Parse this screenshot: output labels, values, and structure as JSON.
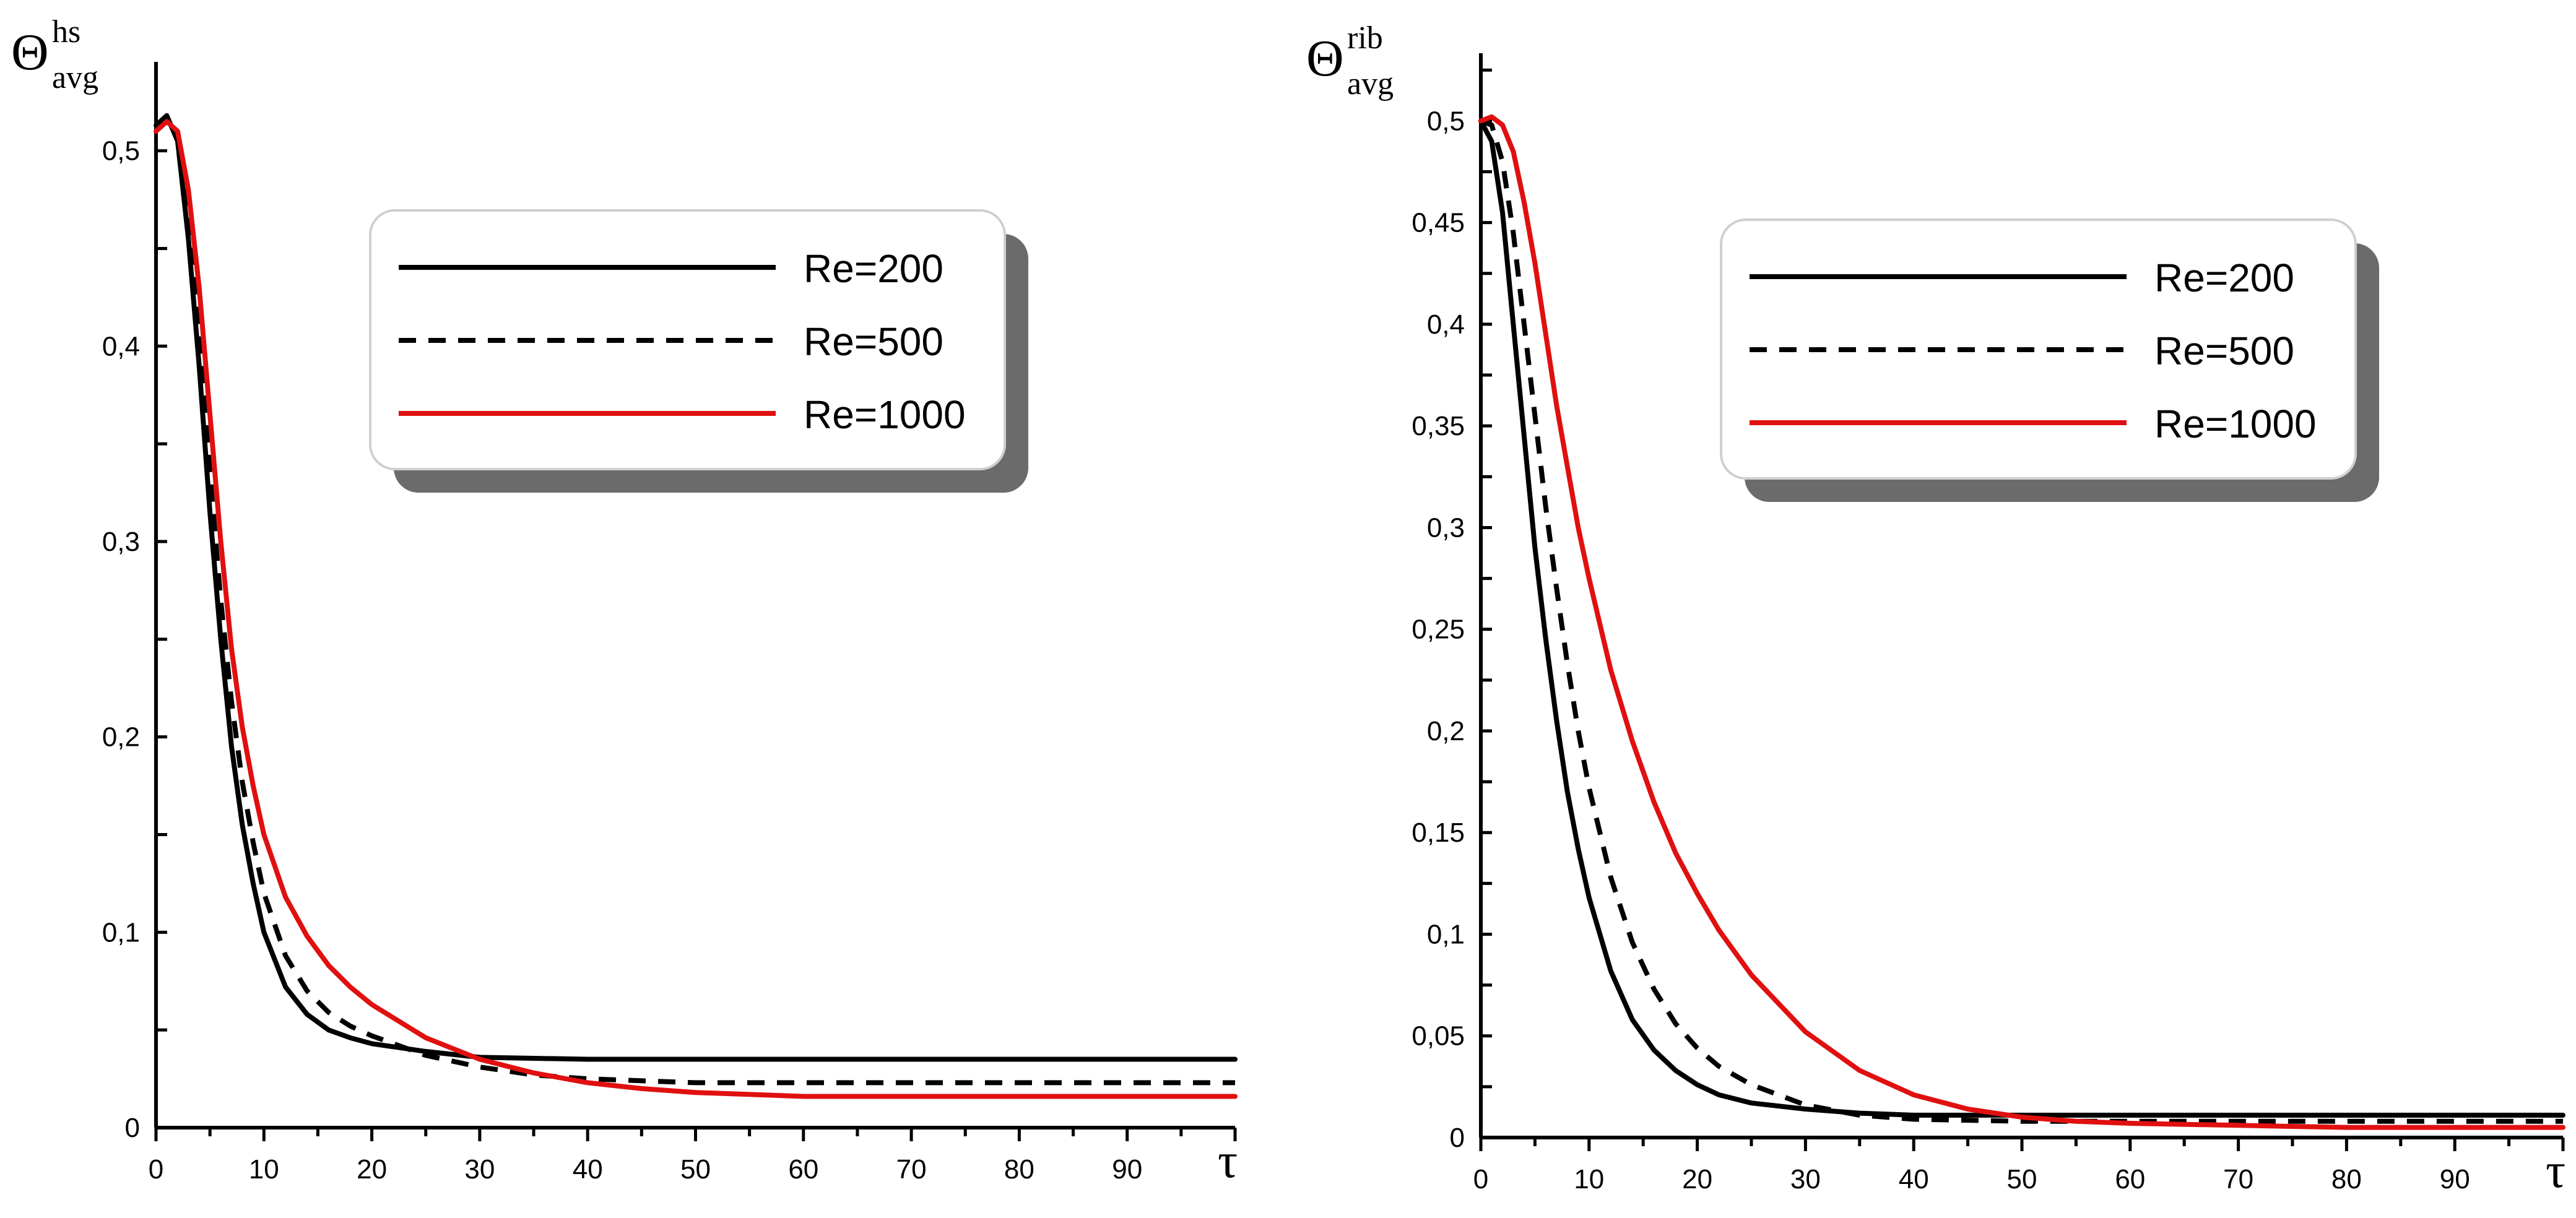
{
  "chart_data": [
    {
      "type": "line",
      "ylabel": "Θ",
      "ylabel_sup": "hs",
      "ylabel_sub": "avg",
      "xlabel": "τ",
      "xlim": [
        0,
        100
      ],
      "ylim": [
        0,
        0.5455
      ],
      "x_ticks": [
        0,
        10,
        20,
        30,
        40,
        50,
        60,
        70,
        80,
        90
      ],
      "x_tick_labels": [
        "0",
        "10",
        "20",
        "30",
        "40",
        "50",
        "60",
        "70",
        "80",
        "90"
      ],
      "y_ticks": [
        0,
        0.1,
        0.2,
        0.3,
        0.4,
        0.5
      ],
      "y_tick_labels": [
        "0",
        "0,1",
        "0,2",
        "0,3",
        "0,4",
        "0,5"
      ],
      "legend_position": "top-center",
      "series": [
        {
          "name": "Re=200",
          "color": "#000000",
          "dash": "solid",
          "x": [
            0,
            1,
            2,
            3,
            4,
            5,
            6,
            7,
            8,
            9,
            10,
            12,
            14,
            16,
            18,
            20,
            25,
            30,
            40,
            50,
            60,
            70,
            80,
            90,
            100
          ],
          "y": [
            0.513,
            0.518,
            0.505,
            0.455,
            0.39,
            0.315,
            0.25,
            0.195,
            0.155,
            0.125,
            0.1,
            0.072,
            0.058,
            0.05,
            0.046,
            0.043,
            0.039,
            0.036,
            0.035,
            0.035,
            0.035,
            0.035,
            0.035,
            0.035,
            0.035
          ]
        },
        {
          "name": "Re=500",
          "color": "#000000",
          "dash": "dashed",
          "x": [
            0,
            1,
            2,
            3,
            4,
            5,
            6,
            7,
            8,
            9,
            10,
            12,
            14,
            16,
            18,
            20,
            25,
            30,
            35,
            40,
            50,
            60,
            70,
            80,
            90,
            100
          ],
          "y": [
            0.512,
            0.517,
            0.508,
            0.47,
            0.405,
            0.335,
            0.27,
            0.218,
            0.177,
            0.146,
            0.12,
            0.088,
            0.07,
            0.059,
            0.052,
            0.047,
            0.037,
            0.031,
            0.027,
            0.025,
            0.023,
            0.023,
            0.023,
            0.023,
            0.023,
            0.023
          ]
        },
        {
          "name": "Re=1000",
          "color": "#e01010",
          "dash": "solid",
          "x": [
            0,
            1,
            2,
            3,
            4,
            5,
            6,
            7,
            8,
            9,
            10,
            12,
            14,
            16,
            18,
            20,
            25,
            30,
            35,
            40,
            45,
            50,
            60,
            70,
            80,
            90,
            100
          ],
          "y": [
            0.51,
            0.515,
            0.51,
            0.48,
            0.43,
            0.365,
            0.3,
            0.245,
            0.205,
            0.175,
            0.15,
            0.118,
            0.098,
            0.083,
            0.072,
            0.063,
            0.046,
            0.035,
            0.028,
            0.023,
            0.02,
            0.018,
            0.016,
            0.016,
            0.016,
            0.016,
            0.016
          ]
        }
      ]
    },
    {
      "type": "line",
      "ylabel": "Θ",
      "ylabel_sup": "rib",
      "ylabel_sub": "avg",
      "xlabel": "τ",
      "xlim": [
        0,
        100
      ],
      "ylim": [
        0,
        0.5333
      ],
      "x_ticks": [
        0,
        10,
        20,
        30,
        40,
        50,
        60,
        70,
        80,
        90
      ],
      "x_tick_labels": [
        "0",
        "10",
        "20",
        "30",
        "40",
        "50",
        "60",
        "70",
        "80",
        "90"
      ],
      "y_ticks": [
        0,
        0.05,
        0.1,
        0.15,
        0.2,
        0.25,
        0.3,
        0.35,
        0.4,
        0.45,
        0.5
      ],
      "y_tick_labels": [
        "0",
        "0,05",
        "0,1",
        "0,15",
        "0,2",
        "0,25",
        "0,3",
        "0,35",
        "0,4",
        "0,45",
        "0,5"
      ],
      "legend_position": "top-center",
      "series": [
        {
          "name": "Re=200",
          "color": "#000000",
          "dash": "solid",
          "x": [
            0,
            1,
            2,
            3,
            4,
            5,
            6,
            7,
            8,
            9,
            10,
            12,
            14,
            16,
            18,
            20,
            22,
            25,
            30,
            35,
            40,
            50,
            60,
            70,
            80,
            90,
            100
          ],
          "y": [
            0.5,
            0.49,
            0.455,
            0.4,
            0.345,
            0.29,
            0.245,
            0.205,
            0.17,
            0.142,
            0.118,
            0.082,
            0.058,
            0.043,
            0.033,
            0.026,
            0.021,
            0.017,
            0.014,
            0.012,
            0.011,
            0.011,
            0.011,
            0.011,
            0.011,
            0.011,
            0.011
          ]
        },
        {
          "name": "Re=500",
          "color": "#000000",
          "dash": "dashed",
          "x": [
            0,
            1,
            2,
            3,
            4,
            5,
            6,
            7,
            8,
            9,
            10,
            12,
            14,
            16,
            18,
            20,
            22,
            25,
            30,
            35,
            40,
            50,
            60,
            70,
            80,
            90,
            100
          ],
          "y": [
            0.5,
            0.498,
            0.48,
            0.445,
            0.4,
            0.355,
            0.31,
            0.27,
            0.233,
            0.2,
            0.172,
            0.128,
            0.096,
            0.073,
            0.056,
            0.044,
            0.035,
            0.026,
            0.016,
            0.011,
            0.009,
            0.008,
            0.008,
            0.008,
            0.008,
            0.008,
            0.008
          ]
        },
        {
          "name": "Re=1000",
          "color": "#e01010",
          "dash": "solid",
          "x": [
            0,
            1,
            2,
            3,
            4,
            5,
            6,
            7,
            8,
            9,
            10,
            12,
            14,
            16,
            18,
            20,
            22,
            25,
            30,
            35,
            40,
            45,
            50,
            55,
            60,
            70,
            80,
            90,
            100
          ],
          "y": [
            0.5,
            0.502,
            0.498,
            0.485,
            0.46,
            0.43,
            0.395,
            0.36,
            0.33,
            0.3,
            0.275,
            0.23,
            0.195,
            0.165,
            0.14,
            0.12,
            0.102,
            0.08,
            0.052,
            0.033,
            0.021,
            0.014,
            0.01,
            0.008,
            0.007,
            0.006,
            0.005,
            0.005,
            0.005
          ]
        }
      ]
    }
  ]
}
